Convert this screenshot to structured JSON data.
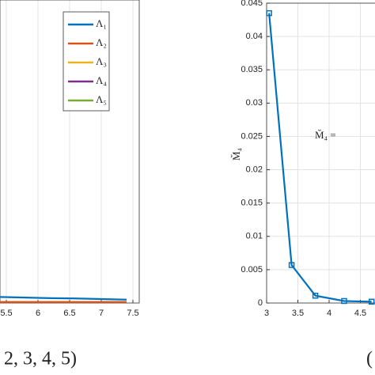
{
  "chart_data": [
    {
      "type": "line",
      "caption": "2, 3, 4, 5)",
      "x": [
        5.4,
        5.8,
        6.2,
        6.6,
        7.0,
        7.4
      ],
      "series": [
        {
          "name": "Λ₁",
          "color": "#0072bd",
          "values": [
            0.02,
            0.018,
            0.016,
            0.015,
            0.013,
            0.011
          ]
        },
        {
          "name": "Λ₂",
          "color": "#d95319",
          "values": [
            0.003,
            0.003,
            0.003,
            0.003,
            0.003,
            0.003
          ]
        },
        {
          "name": "Λ₃",
          "color": "#edb120",
          "values": [
            0.003,
            0.003,
            0.003,
            0.003,
            0.003,
            0.003
          ]
        },
        {
          "name": "Λ₄",
          "color": "#7e2f8e",
          "values": [
            0.003,
            0.003,
            0.003,
            0.003,
            0.003,
            0.003
          ]
        },
        {
          "name": "Λ₅",
          "color": "#77ac30",
          "values": [
            0.003,
            0.003,
            0.003,
            0.003,
            0.003,
            0.003
          ]
        }
      ],
      "xlim": [
        5.4,
        7.6
      ],
      "xticks": [
        5.5,
        6,
        6.5,
        7,
        7.5
      ],
      "ylim": [
        0,
        1
      ],
      "grid": true,
      "legend": "upper right"
    },
    {
      "type": "line",
      "caption": "(",
      "ylabel": "M̆₄",
      "annotation": "M̆₄ =",
      "x": [
        3.04,
        3.4,
        3.78,
        4.24,
        4.68
      ],
      "series": [
        {
          "color": "#0072bd",
          "marker": "square",
          "values": [
            0.0435,
            0.0057,
            0.0011,
            0.0003,
            0.0002
          ]
        }
      ],
      "xlim": [
        3,
        5
      ],
      "xticks": [
        3,
        3.5,
        4,
        4.5
      ],
      "ylim": [
        0,
        0.045
      ],
      "yticks": [
        0,
        0.005,
        0.01,
        0.015,
        0.02,
        0.025,
        0.03,
        0.035,
        0.04,
        0.045
      ],
      "grid": true
    }
  ]
}
